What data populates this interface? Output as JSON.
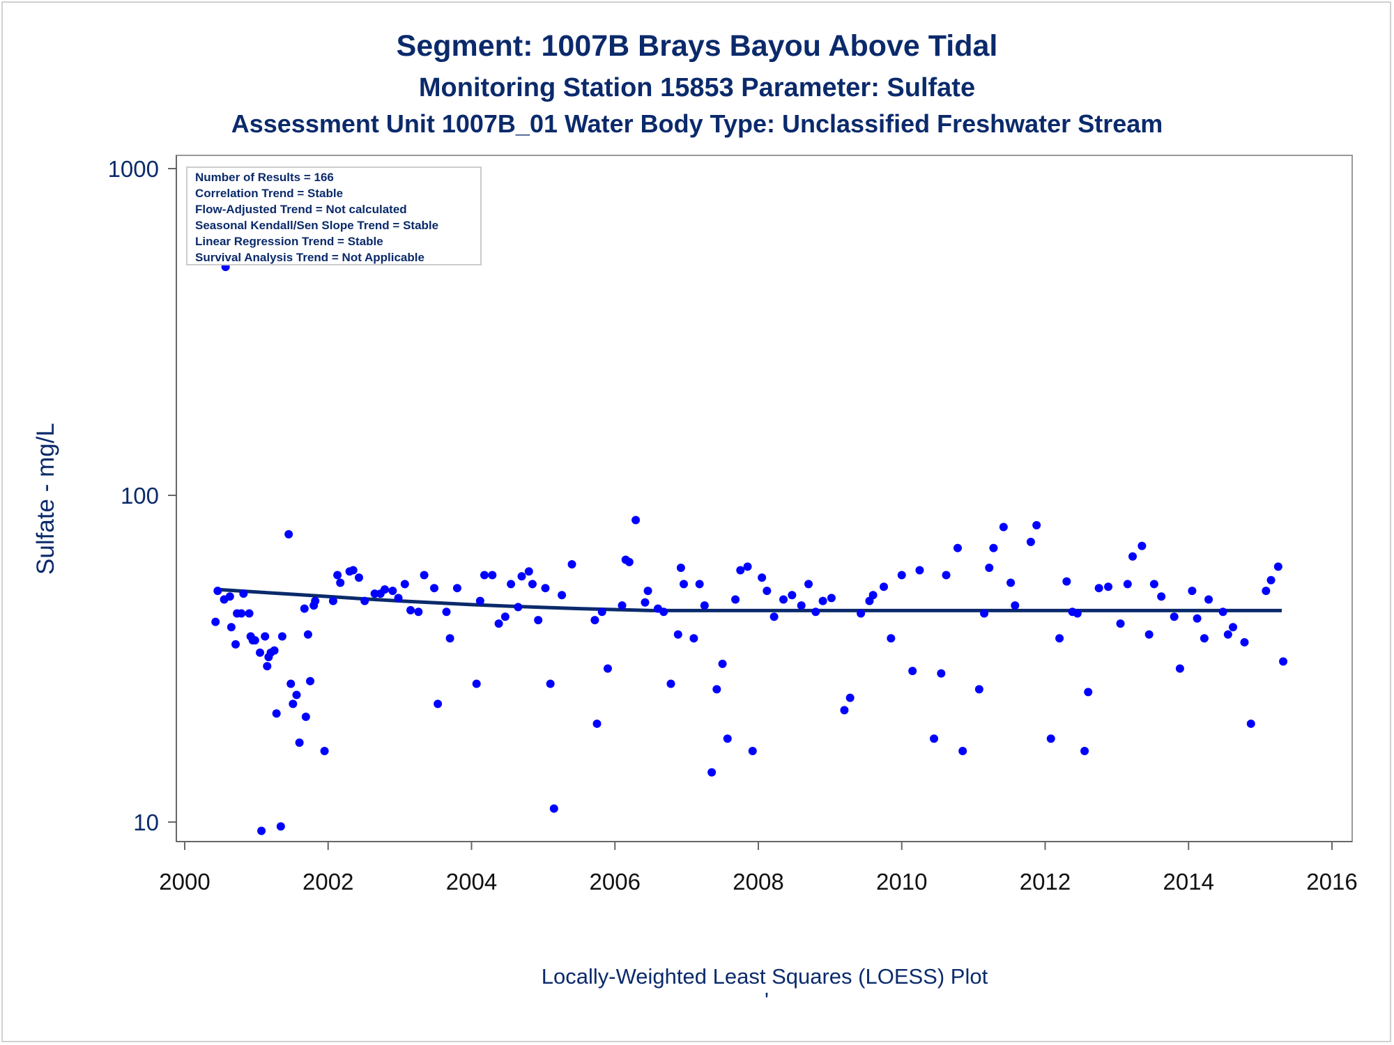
{
  "chart_data": {
    "type": "scatter",
    "title": "Segment: 1007B  Brays Bayou Above Tidal",
    "subtitle": "Monitoring Station 15853 Parameter: Sulfate",
    "subtitle2": "Assessment Unit 1007B_01   Water Body Type: Unclassified Freshwater Stream",
    "ylabel": "Sulfate - mg/L",
    "footnote": "Locally-Weighted Least Squares (LOESS) Plot",
    "footnote_mark": "'",
    "xlim": [
      2000,
      2016
    ],
    "xticks": [
      "2000",
      "2002",
      "2004",
      "2006",
      "2008",
      "2010",
      "2012",
      "2014",
      "2016"
    ],
    "ylim": [
      9,
      1000
    ],
    "yscale": "log",
    "yticks": [
      "10",
      "100",
      "1000"
    ],
    "grid": false,
    "stats_box": [
      "Number of Results = 166",
      "Correlation Trend = Stable",
      "Flow-Adjusted Trend = Not calculated",
      "Seasonal Kendall/Sen Slope Trend = Stable",
      "Linear Regression Trend = Stable",
      "Survival Analysis Trend = Not Applicable"
    ],
    "point_color": "#0000ff",
    "line_color": "#0b2a6b",
    "series": [
      {
        "kind": "points",
        "points": [
          [
            2000.43,
            41
          ],
          [
            2000.46,
            51
          ],
          [
            2000.55,
            48
          ],
          [
            2000.57,
            500
          ],
          [
            2000.63,
            49
          ],
          [
            2000.65,
            39.5
          ],
          [
            2000.71,
            35
          ],
          [
            2000.73,
            43.5
          ],
          [
            2000.79,
            43.5
          ],
          [
            2000.82,
            50
          ],
          [
            2000.9,
            43.5
          ],
          [
            2000.92,
            37
          ],
          [
            2000.95,
            36
          ],
          [
            2000.98,
            36
          ],
          [
            2001.05,
            33
          ],
          [
            2001.07,
            9.4
          ],
          [
            2001.12,
            37
          ],
          [
            2001.15,
            30
          ],
          [
            2001.17,
            32
          ],
          [
            2001.2,
            33
          ],
          [
            2001.25,
            33.5
          ],
          [
            2001.28,
            21.5
          ],
          [
            2001.34,
            9.7
          ],
          [
            2001.36,
            37
          ],
          [
            2001.45,
            76
          ],
          [
            2001.48,
            26.5
          ],
          [
            2001.51,
            23
          ],
          [
            2001.56,
            24.5
          ],
          [
            2001.6,
            17.5
          ],
          [
            2001.67,
            45
          ],
          [
            2001.69,
            21
          ],
          [
            2001.72,
            37.5
          ],
          [
            2001.75,
            27
          ],
          [
            2001.8,
            46
          ],
          [
            2001.82,
            47.5
          ],
          [
            2001.95,
            16.5
          ],
          [
            2002.07,
            47.5
          ],
          [
            2002.13,
            57
          ],
          [
            2002.17,
            54
          ],
          [
            2002.3,
            58.5
          ],
          [
            2002.35,
            59
          ],
          [
            2002.43,
            56
          ],
          [
            2002.51,
            47.5
          ],
          [
            2002.65,
            50
          ],
          [
            2002.73,
            50
          ],
          [
            2002.79,
            51.5
          ],
          [
            2002.9,
            51
          ],
          [
            2002.98,
            48.5
          ],
          [
            2003.07,
            53.5
          ],
          [
            2003.15,
            44.5
          ],
          [
            2003.26,
            44
          ],
          [
            2003.34,
            57
          ],
          [
            2003.48,
            52
          ],
          [
            2003.53,
            23
          ],
          [
            2003.65,
            44
          ],
          [
            2003.7,
            36.5
          ],
          [
            2003.8,
            52
          ],
          [
            2004.07,
            26.5
          ],
          [
            2004.12,
            47.5
          ],
          [
            2004.18,
            57
          ],
          [
            2004.29,
            57
          ],
          [
            2004.38,
            40.5
          ],
          [
            2004.47,
            42.5
          ],
          [
            2004.55,
            53.5
          ],
          [
            2004.65,
            45.5
          ],
          [
            2004.7,
            56.5
          ],
          [
            2004.8,
            58.5
          ],
          [
            2004.85,
            53.5
          ],
          [
            2004.93,
            41.5
          ],
          [
            2005.03,
            52
          ],
          [
            2005.1,
            26.5
          ],
          [
            2005.15,
            11
          ],
          [
            2005.26,
            49.5
          ],
          [
            2005.4,
            61.5
          ],
          [
            2005.72,
            41.5
          ],
          [
            2005.75,
            20
          ],
          [
            2005.82,
            44
          ],
          [
            2005.9,
            29.5
          ],
          [
            2006.1,
            46
          ],
          [
            2006.15,
            63.5
          ],
          [
            2006.2,
            62.5
          ],
          [
            2006.29,
            84
          ],
          [
            2006.42,
            47
          ],
          [
            2006.46,
            51
          ],
          [
            2006.6,
            45
          ],
          [
            2006.68,
            44
          ],
          [
            2006.78,
            26.5
          ],
          [
            2006.88,
            37.5
          ],
          [
            2006.92,
            60
          ],
          [
            2006.96,
            53.5
          ],
          [
            2007.1,
            36.5
          ],
          [
            2007.18,
            53.5
          ],
          [
            2007.25,
            46
          ],
          [
            2007.35,
            14.2
          ],
          [
            2007.42,
            25.5
          ],
          [
            2007.5,
            30.5
          ],
          [
            2007.57,
            18
          ],
          [
            2007.68,
            48
          ],
          [
            2007.75,
            59
          ],
          [
            2007.85,
            60.5
          ],
          [
            2007.92,
            16.5
          ],
          [
            2008.05,
            56
          ],
          [
            2008.12,
            51
          ],
          [
            2008.22,
            42.5
          ],
          [
            2008.35,
            48
          ],
          [
            2008.47,
            49.5
          ],
          [
            2008.6,
            46
          ],
          [
            2008.7,
            53.5
          ],
          [
            2008.8,
            44
          ],
          [
            2008.9,
            47.5
          ],
          [
            2009.02,
            48.5
          ],
          [
            2009.2,
            22
          ],
          [
            2009.28,
            24
          ],
          [
            2009.43,
            43.5
          ],
          [
            2009.55,
            47.5
          ],
          [
            2009.6,
            49.5
          ],
          [
            2009.75,
            52.5
          ],
          [
            2009.85,
            36.5
          ],
          [
            2010.0,
            57
          ],
          [
            2010.15,
            29
          ],
          [
            2010.25,
            59
          ],
          [
            2010.45,
            18
          ],
          [
            2010.55,
            28.5
          ],
          [
            2010.62,
            57
          ],
          [
            2010.78,
            69
          ],
          [
            2010.85,
            16.5
          ],
          [
            2011.08,
            25.5
          ],
          [
            2011.15,
            43.5
          ],
          [
            2011.22,
            60
          ],
          [
            2011.28,
            69
          ],
          [
            2011.42,
            80
          ],
          [
            2011.52,
            54
          ],
          [
            2011.58,
            46
          ],
          [
            2011.8,
            72
          ],
          [
            2011.88,
            81
          ],
          [
            2012.08,
            18
          ],
          [
            2012.2,
            36.5
          ],
          [
            2012.3,
            54.5
          ],
          [
            2012.38,
            44
          ],
          [
            2012.45,
            43.5
          ],
          [
            2012.55,
            16.5
          ],
          [
            2012.6,
            25
          ],
          [
            2012.75,
            52
          ],
          [
            2012.88,
            52.5
          ],
          [
            2013.05,
            40.5
          ],
          [
            2013.15,
            53.5
          ],
          [
            2013.22,
            65
          ],
          [
            2013.35,
            70
          ],
          [
            2013.45,
            37.5
          ],
          [
            2013.52,
            53.5
          ],
          [
            2013.62,
            49
          ],
          [
            2013.8,
            42.5
          ],
          [
            2013.88,
            29.5
          ],
          [
            2014.05,
            51
          ],
          [
            2014.12,
            42
          ],
          [
            2014.22,
            36.5
          ],
          [
            2014.28,
            48
          ],
          [
            2014.48,
            44
          ],
          [
            2014.55,
            37.5
          ],
          [
            2014.62,
            39.5
          ],
          [
            2014.78,
            35.5
          ],
          [
            2014.87,
            20
          ],
          [
            2015.08,
            51
          ],
          [
            2015.15,
            55
          ],
          [
            2015.25,
            60.5
          ],
          [
            2015.32,
            31
          ]
        ]
      },
      {
        "kind": "loess",
        "points": [
          [
            2000.45,
            51.5
          ],
          [
            2001.0,
            50.6
          ],
          [
            2001.5,
            49.8
          ],
          [
            2002.0,
            49.0
          ],
          [
            2002.5,
            48.2
          ],
          [
            2003.0,
            47.5
          ],
          [
            2003.5,
            46.9
          ],
          [
            2004.0,
            46.3
          ],
          [
            2004.5,
            45.8
          ],
          [
            2005.0,
            45.4
          ],
          [
            2005.5,
            45.0
          ],
          [
            2006.0,
            44.7
          ],
          [
            2006.5,
            44.4
          ],
          [
            2007.0,
            44.4
          ],
          [
            2008.0,
            44.4
          ],
          [
            2009.0,
            44.4
          ],
          [
            2010.0,
            44.4
          ],
          [
            2011.0,
            44.4
          ],
          [
            2012.0,
            44.4
          ],
          [
            2013.0,
            44.4
          ],
          [
            2014.0,
            44.4
          ],
          [
            2015.3,
            44.4
          ]
        ]
      }
    ]
  }
}
